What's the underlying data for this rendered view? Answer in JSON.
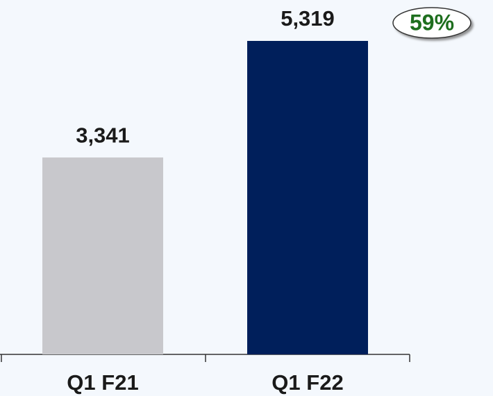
{
  "chart_data": {
    "type": "bar",
    "categories": [
      "Q1 F21",
      "Q1 F22"
    ],
    "values": [
      3341,
      5319
    ],
    "value_labels": [
      "3,341",
      "5,319"
    ],
    "colors": [
      "#c8c8cc",
      "#001f5b"
    ],
    "annotation": "59%"
  }
}
